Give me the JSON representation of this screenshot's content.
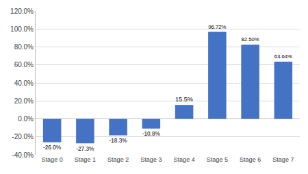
{
  "chart_data": {
    "type": "bar",
    "categories": [
      "Stage 0",
      "Stage 1",
      "Stage 2",
      "Stage 3",
      "Stage 4",
      "Stage 5",
      "Stage 6",
      "Stage 7"
    ],
    "values": [
      -26.0,
      -27.3,
      -18.3,
      -10.8,
      15.5,
      96.72,
      82.5,
      63.64
    ],
    "value_labels": [
      "-26.0%",
      "-27.3%",
      "-18.3%",
      "-10.8%",
      "15.5%",
      "96.72%",
      "82.50%",
      "63.64%"
    ],
    "data_labels": true,
    "color": "#4472c4",
    "ylim": [
      -40,
      120
    ],
    "yticks": [
      {
        "value": -40,
        "label": "-40.0%"
      },
      {
        "value": -20,
        "label": "-20.0%"
      },
      {
        "value": 0,
        "label": "0.0%"
      },
      {
        "value": 20,
        "label": "20.0%"
      },
      {
        "value": 40,
        "label": "40.0%"
      },
      {
        "value": 60,
        "label": "60.0%"
      },
      {
        "value": 80,
        "label": "80.0%"
      },
      {
        "value": 100,
        "label": "100.0%"
      },
      {
        "value": 120,
        "label": "120.0%"
      }
    ],
    "grid": true
  }
}
